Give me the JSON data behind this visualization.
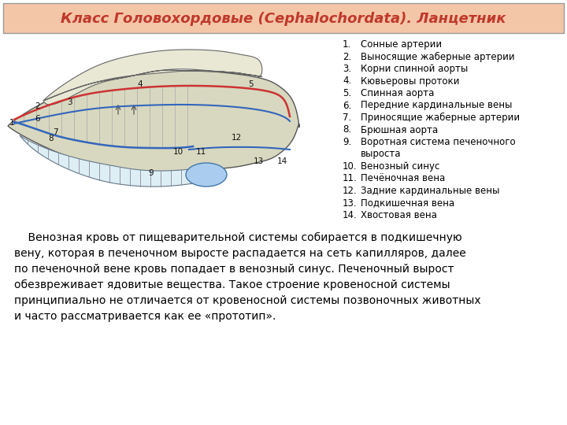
{
  "title": "Класс Головохордовые (Cephalochordata). Ланцетник",
  "title_color": "#C0392B",
  "title_bg_color": "#F4C6A8",
  "title_border_color": "#999999",
  "legend_items": [
    "Сонные артерии",
    "Выносящие жаберные артерии",
    "Корни спинной аорты",
    "Кювьеровы протоки",
    "Спинная аорта",
    "Передние кардинальные вены",
    "Приносящие жаберные артерии",
    "Брюшная аорта",
    "Воротная система печеночного\nвыроста",
    "Венозный синус",
    "Печёночная вена",
    "Задние кардинальные вены",
    "Подкишечная вена",
    "Хвостовая вена"
  ],
  "body_text_lines": [
    "    Венозная кровь от пищеварительной системы собирается в подкишечную",
    "вену, которая в печеночном выросте распадается на сеть капилляров, далее",
    "по печеночной вене кровь попадает в венозный синус. Печеночный вырост",
    "обезвреживает ядовитые вещества. Такое строение кровеносной системы",
    "принципиально не отличается от кровеносной системы позвоночных животных",
    "и часто рассматривается как ее «прототип»."
  ],
  "bg_color": "#FFFFFF",
  "text_color": "#000000",
  "artery_color": "#CC3333",
  "vein_color": "#3366BB",
  "body_color": "#D8D8C0",
  "fin_color": "#E8E8D5",
  "gill_color": "#C8DFF0"
}
